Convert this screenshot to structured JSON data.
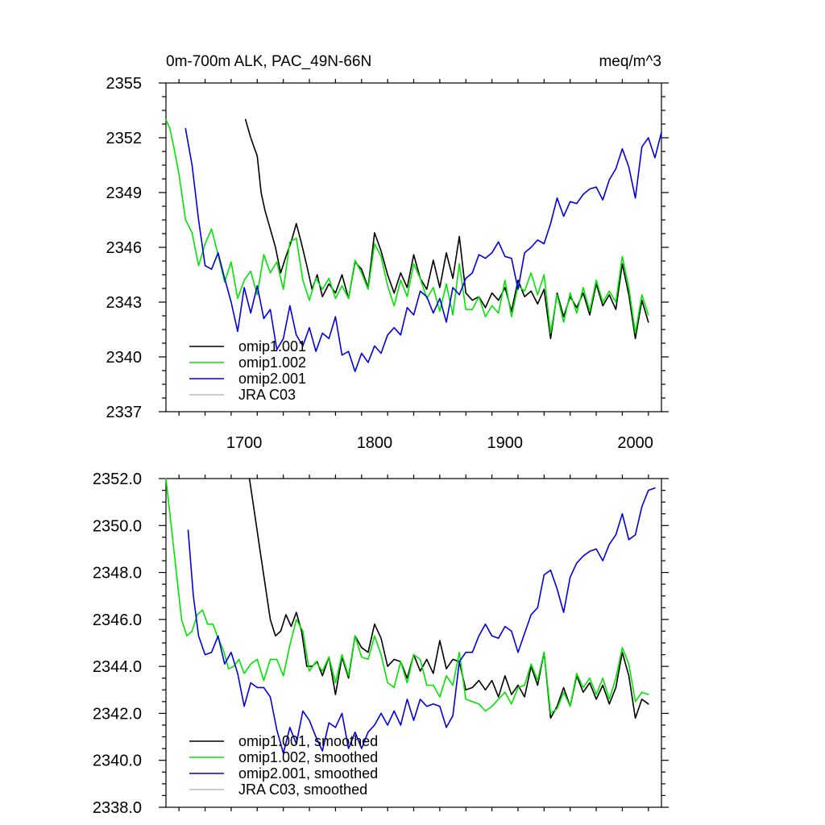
{
  "chart_data": [
    {
      "type": "line",
      "title_left": "0m-700m ALK, PAC_49N-66N",
      "title_right": "meq/m^3",
      "xlabel": "",
      "ylabel": "",
      "xlim": [
        1640,
        2020
      ],
      "ylim": [
        2337,
        2355
      ],
      "x_ticks": [
        1700,
        1800,
        1900,
        2000
      ],
      "x_tick_labels": [
        "1700",
        "1800",
        "1900",
        "2000"
      ],
      "y_ticks": [
        2337,
        2340,
        2343,
        2346,
        2349,
        2352,
        2355
      ],
      "y_tick_labels": [
        "2337",
        "2340",
        "2343",
        "2346",
        "2349",
        "2352",
        "2355"
      ],
      "legend_position": "bottom-left",
      "series": [
        {
          "name": "omip1.001",
          "color": "#000000",
          "x": [
            1701,
            1705,
            1710,
            1713,
            1716,
            1720,
            1724,
            1728,
            1732,
            1736,
            1740,
            1744,
            1748,
            1752,
            1756,
            1760,
            1765,
            1770,
            1775,
            1780,
            1785,
            1790,
            1795,
            1800,
            1805,
            1810,
            1815,
            1820,
            1825,
            1830,
            1835,
            1840,
            1845,
            1850,
            1855,
            1860,
            1865,
            1870,
            1875,
            1880,
            1885,
            1890,
            1895,
            1900,
            1905,
            1910,
            1915,
            1920,
            1925,
            1930,
            1935,
            1940,
            1945,
            1950,
            1955,
            1960,
            1965,
            1970,
            1975,
            1980,
            1985,
            1990,
            1995,
            2000,
            2005,
            2010
          ],
          "y": [
            2353,
            2352,
            2351,
            2349,
            2348,
            2347,
            2346,
            2344.6,
            2345.5,
            2346.3,
            2347.3,
            2346.2,
            2345,
            2343.7,
            2344.5,
            2343.3,
            2344,
            2343.5,
            2344.5,
            2343.2,
            2345.2,
            2344.8,
            2343.8,
            2346.8,
            2345.8,
            2344.5,
            2343.5,
            2344.6,
            2343.8,
            2345.6,
            2344.3,
            2343.7,
            2345.3,
            2343.8,
            2345.7,
            2344.3,
            2346.6,
            2343.5,
            2343.1,
            2343.3,
            2342.7,
            2343.5,
            2343.1,
            2343.8,
            2342.5,
            2344.2,
            2343.3,
            2343.6,
            2342.9,
            2343.7,
            2341,
            2343.5,
            2342.2,
            2343.3,
            2342.7,
            2343.5,
            2342.3,
            2344,
            2342.8,
            2343.4,
            2342.6,
            2345.1,
            2343.4,
            2341,
            2343.1,
            2341.9
          ]
        },
        {
          "name": "omip1.002",
          "color": "#00e600",
          "x": [
            1640,
            1643,
            1646,
            1650,
            1655,
            1660,
            1665,
            1670,
            1675,
            1680,
            1685,
            1690,
            1695,
            1700,
            1705,
            1710,
            1715,
            1720,
            1725,
            1730,
            1735,
            1740,
            1745,
            1750,
            1755,
            1760,
            1765,
            1770,
            1775,
            1780,
            1785,
            1790,
            1795,
            1800,
            1805,
            1810,
            1815,
            1820,
            1825,
            1830,
            1835,
            1840,
            1845,
            1850,
            1855,
            1860,
            1865,
            1870,
            1875,
            1880,
            1885,
            1890,
            1895,
            1900,
            1905,
            1910,
            1915,
            1920,
            1925,
            1930,
            1935,
            1940,
            1945,
            1950,
            1955,
            1960,
            1965,
            1970,
            1975,
            1980,
            1985,
            1990,
            1995,
            2000,
            2005,
            2010
          ],
          "y": [
            2353,
            2352.5,
            2351.5,
            2350,
            2347.5,
            2346.8,
            2345,
            2346.2,
            2347,
            2345.6,
            2344.1,
            2345.2,
            2343.2,
            2344.2,
            2344.7,
            2343.4,
            2345.6,
            2344.6,
            2345.2,
            2343.7,
            2346.3,
            2346.5,
            2344.2,
            2343.1,
            2344.3,
            2343.7,
            2344.3,
            2343.2,
            2343.9,
            2343.2,
            2345.3,
            2344.6,
            2343.7,
            2346.2,
            2345.5,
            2343.9,
            2342.8,
            2344.2,
            2343.3,
            2345.1,
            2344.3,
            2343.2,
            2343.8,
            2342.5,
            2344,
            2342.3,
            2345.1,
            2342.6,
            2342.6,
            2343.3,
            2342.2,
            2342.8,
            2342.4,
            2344.2,
            2342.2,
            2343.9,
            2343.6,
            2344.6,
            2343.4,
            2344.5,
            2341.3,
            2343.4,
            2341.9,
            2343.5,
            2342.4,
            2343.8,
            2342.5,
            2344.2,
            2343,
            2343.6,
            2343,
            2345.5,
            2343.8,
            2341.3,
            2343.4,
            2342.3
          ]
        },
        {
          "name": "omip2.001",
          "color": "#0000e6",
          "x": [
            1655,
            1660,
            1665,
            1670,
            1675,
            1680,
            1685,
            1690,
            1695,
            1700,
            1705,
            1710,
            1715,
            1720,
            1725,
            1730,
            1735,
            1740,
            1745,
            1750,
            1755,
            1760,
            1765,
            1770,
            1775,
            1780,
            1785,
            1790,
            1795,
            1800,
            1805,
            1810,
            1815,
            1820,
            1825,
            1830,
            1835,
            1840,
            1845,
            1850,
            1855,
            1860,
            1865,
            1870,
            1875,
            1880,
            1885,
            1890,
            1895,
            1900,
            1905,
            1910,
            1915,
            1920,
            1925,
            1930,
            1935,
            1940,
            1945,
            1950,
            1955,
            1960,
            1965,
            1970,
            1975,
            1980,
            1985,
            1990,
            1995,
            2000,
            2005,
            2010,
            2015,
            2020
          ],
          "y": [
            2352.5,
            2350.5,
            2347.5,
            2345,
            2344.8,
            2345.7,
            2344.3,
            2343,
            2341.4,
            2343.8,
            2342.4,
            2343.9,
            2342.1,
            2342.6,
            2340.4,
            2341,
            2342.8,
            2341.2,
            2340.6,
            2341.6,
            2340.3,
            2341.3,
            2341,
            2342.2,
            2340.1,
            2340.3,
            2339.2,
            2340.2,
            2339.7,
            2340.6,
            2340.2,
            2341.2,
            2341.6,
            2341.2,
            2342.7,
            2342.3,
            2343.6,
            2343.3,
            2342.4,
            2343.2,
            2341.9,
            2343.8,
            2343.4,
            2344.3,
            2344.6,
            2345.6,
            2345.4,
            2345.7,
            2346.3,
            2345.5,
            2345.4,
            2343.7,
            2345.7,
            2346,
            2346.4,
            2346.2,
            2347.3,
            2348.7,
            2347.7,
            2348.5,
            2348.4,
            2348.9,
            2349.2,
            2349.3,
            2348.6,
            2349.7,
            2350.3,
            2351.4,
            2350.4,
            2348.7,
            2351.5,
            2352,
            2350.9,
            2352.3
          ]
        },
        {
          "name": "JRA C03",
          "color": "#bbbbbb",
          "x": [],
          "y": []
        }
      ]
    },
    {
      "type": "line",
      "title_left": "",
      "title_right": "",
      "xlabel": "",
      "ylabel": "",
      "xlim": [
        1640,
        2020
      ],
      "ylim": [
        2338.0,
        2352.0
      ],
      "x_ticks": [
        1700,
        1800,
        1900,
        2000
      ],
      "x_tick_labels": [],
      "y_ticks": [
        2338,
        2340,
        2342,
        2344,
        2346,
        2348,
        2350,
        2352
      ],
      "y_tick_labels": [
        "2338.0",
        "2340.0",
        "2342.0",
        "2344.0",
        "2346.0",
        "2348.0",
        "2350.0",
        "2352.0"
      ],
      "legend_position": "bottom-left",
      "series": [
        {
          "name": "omip1.001, smoothed",
          "color": "#000000",
          "x": [
            1704,
            1708,
            1712,
            1716,
            1720,
            1724,
            1728,
            1732,
            1736,
            1740,
            1744,
            1748,
            1752,
            1756,
            1760,
            1765,
            1770,
            1775,
            1780,
            1785,
            1790,
            1795,
            1800,
            1805,
            1810,
            1815,
            1820,
            1825,
            1830,
            1835,
            1840,
            1845,
            1850,
            1855,
            1860,
            1865,
            1870,
            1875,
            1880,
            1885,
            1890,
            1895,
            1900,
            1905,
            1910,
            1915,
            1920,
            1925,
            1930,
            1935,
            1940,
            1945,
            1950,
            1955,
            1960,
            1965,
            1970,
            1975,
            1980,
            1985,
            1990,
            1995,
            2000,
            2005,
            2010
          ],
          "y": [
            2352,
            2350.5,
            2349,
            2347.5,
            2346,
            2345.3,
            2345.5,
            2346.2,
            2345.7,
            2346.3,
            2345.5,
            2344,
            2344,
            2344.2,
            2343.6,
            2344.4,
            2342.8,
            2344.4,
            2343.5,
            2345.3,
            2344.8,
            2344.6,
            2345.8,
            2345.2,
            2344,
            2344.3,
            2344.2,
            2343.5,
            2344.5,
            2343.8,
            2344.3,
            2343.7,
            2345.1,
            2343.9,
            2344.3,
            2344.2,
            2343,
            2343.1,
            2343.4,
            2343,
            2343.4,
            2342.7,
            2343.6,
            2342.8,
            2343.2,
            2342.7,
            2344,
            2343.2,
            2344.6,
            2341.8,
            2342.3,
            2343.1,
            2342.3,
            2343.6,
            2342.9,
            2343.3,
            2342.6,
            2343.2,
            2342.4,
            2343.1,
            2344.6,
            2343.6,
            2341.8,
            2342.6,
            2342.4
          ]
        },
        {
          "name": "omip1.002, smoothed",
          "color": "#00e600",
          "x": [
            1640,
            1644,
            1648,
            1652,
            1656,
            1660,
            1664,
            1668,
            1672,
            1676,
            1680,
            1684,
            1688,
            1692,
            1696,
            1700,
            1705,
            1710,
            1715,
            1720,
            1725,
            1730,
            1735,
            1740,
            1745,
            1750,
            1755,
            1760,
            1765,
            1770,
            1775,
            1780,
            1785,
            1790,
            1795,
            1800,
            1805,
            1810,
            1815,
            1820,
            1825,
            1830,
            1835,
            1840,
            1845,
            1850,
            1855,
            1860,
            1865,
            1870,
            1875,
            1880,
            1885,
            1890,
            1895,
            1900,
            1905,
            1910,
            1915,
            1920,
            1925,
            1930,
            1935,
            1940,
            1945,
            1950,
            1955,
            1960,
            1965,
            1970,
            1975,
            1980,
            1985,
            1990,
            1995,
            2000,
            2005,
            2010
          ],
          "y": [
            2352,
            2350,
            2348,
            2346,
            2345.3,
            2345.5,
            2346.2,
            2346.4,
            2345.8,
            2345.8,
            2345.2,
            2344.7,
            2343.9,
            2344,
            2344.3,
            2343.7,
            2344.1,
            2344.3,
            2343.4,
            2344.3,
            2344.3,
            2343.6,
            2344.9,
            2346,
            2345.5,
            2343.8,
            2344.2,
            2343.8,
            2344.4,
            2343.3,
            2344.5,
            2343.6,
            2345.3,
            2344.4,
            2344.3,
            2345.3,
            2344.5,
            2343.3,
            2343.1,
            2344.2,
            2343.3,
            2344.5,
            2344.3,
            2343.2,
            2343.2,
            2342.7,
            2343.6,
            2343.2,
            2344.6,
            2342.6,
            2342.5,
            2342.4,
            2342.1,
            2342.3,
            2342.6,
            2342.9,
            2342.4,
            2343.1,
            2343.2,
            2344.1,
            2343.4,
            2344.6,
            2342,
            2342.2,
            2342.9,
            2342.3,
            2343.7,
            2343.1,
            2343.5,
            2342.8,
            2343.5,
            2342.6,
            2343.5,
            2344.8,
            2344.1,
            2342.5,
            2342.9,
            2342.8
          ]
        },
        {
          "name": "omip2.001, smoothed",
          "color": "#0000e6",
          "x": [
            1657,
            1661,
            1665,
            1670,
            1675,
            1680,
            1685,
            1690,
            1695,
            1700,
            1705,
            1710,
            1715,
            1720,
            1725,
            1730,
            1735,
            1740,
            1745,
            1750,
            1755,
            1760,
            1765,
            1770,
            1775,
            1780,
            1785,
            1790,
            1795,
            1800,
            1805,
            1810,
            1815,
            1820,
            1825,
            1830,
            1835,
            1840,
            1845,
            1850,
            1855,
            1860,
            1865,
            1870,
            1875,
            1880,
            1885,
            1890,
            1895,
            1900,
            1905,
            1910,
            1915,
            1920,
            1925,
            1930,
            1935,
            1940,
            1945,
            1950,
            1955,
            1960,
            1965,
            1970,
            1975,
            1980,
            1985,
            1990,
            1995,
            2000,
            2005,
            2010,
            2015
          ],
          "y": [
            2349.8,
            2347,
            2345.3,
            2344.5,
            2344.6,
            2345.3,
            2344.1,
            2344.6,
            2343.7,
            2342.3,
            2343.3,
            2343.1,
            2343.1,
            2342.7,
            2341.3,
            2340.3,
            2341.4,
            2340.7,
            2342.1,
            2341.7,
            2341,
            2340.4,
            2341.6,
            2341.4,
            2342,
            2340.5,
            2341.2,
            2340.5,
            2341.2,
            2341.5,
            2342,
            2341.5,
            2342.1,
            2341.5,
            2342.6,
            2341.7,
            2342.6,
            2342.3,
            2342.4,
            2342.3,
            2341.4,
            2341.9,
            2344.2,
            2344.6,
            2344.6,
            2345.3,
            2345.8,
            2345.3,
            2345.2,
            2345.7,
            2345.5,
            2344.6,
            2345.4,
            2346.2,
            2346.5,
            2347.9,
            2348.1,
            2347.3,
            2346.3,
            2347.8,
            2348.4,
            2348.7,
            2348.9,
            2349,
            2348.5,
            2349.2,
            2349.6,
            2350.5,
            2349.4,
            2349.6,
            2350.8,
            2351.5,
            2351.6
          ]
        },
        {
          "name": "JRA C03, smoothed",
          "color": "#bbbbbb",
          "x": [],
          "y": []
        }
      ]
    }
  ]
}
